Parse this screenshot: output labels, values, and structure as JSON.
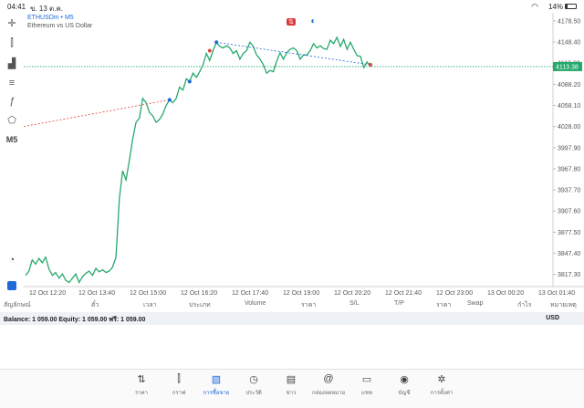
{
  "status": {
    "time": "04:41",
    "date": "ข. 13 ต.ค.",
    "battery": "14%"
  },
  "chart": {
    "symbol": "ETHUSDm • M5",
    "description": "Ethereum vs US Dollar",
    "current_price": "4113.38",
    "timeframe": "M5",
    "y_ticks": [
      "4178.50",
      "4148.40",
      "4118.30",
      "4088.20",
      "4058.10",
      "4028.00",
      "3997.90",
      "3967.80",
      "3937.70",
      "3907.60",
      "3877.50",
      "3847.40",
      "3817.30"
    ],
    "x_ticks": [
      "12 Oct 12:20",
      "12 Oct 13:40",
      "12 Oct 15:00",
      "12 Oct 16:20",
      "12 Oct 17:40",
      "12 Oct 19:00",
      "12 Oct 20:20",
      "12 Oct 21:40",
      "12 Oct 23:00",
      "13 Oct 00:20",
      "13 Oct 01:40"
    ]
  },
  "chart_data": {
    "type": "line",
    "ylim": [
      3800,
      4190
    ],
    "current_price": 4113.38,
    "y": [
      3816,
      3822,
      3838,
      3832,
      3840,
      3834,
      3842,
      3825,
      3816,
      3820,
      3812,
      3818,
      3809,
      3806,
      3812,
      3818,
      3806,
      3814,
      3819,
      3822,
      3816,
      3826,
      3821,
      3824,
      3820,
      3822,
      3828,
      3842,
      3925,
      3965,
      3952,
      3980,
      4010,
      4034,
      4040,
      4068,
      4062,
      4048,
      4043,
      4034,
      4038,
      4046,
      4058,
      4066,
      4062,
      4068,
      4084,
      4080,
      4096,
      4092,
      4104,
      4098,
      4106,
      4116,
      4132,
      4122,
      4136,
      4148,
      4142,
      4140,
      4143,
      4140,
      4132,
      4136,
      4124,
      4132,
      4136,
      4148,
      4142,
      4130,
      4124,
      4116,
      4104,
      4108,
      4106,
      4121,
      4133,
      4124,
      4133,
      4138,
      4140,
      4136,
      4124,
      4130,
      4130,
      4136,
      4146,
      4140,
      4143,
      4139,
      4138,
      4151,
      4146,
      4155,
      4142,
      4152,
      4138,
      4148,
      4138,
      4129,
      4128,
      4112,
      4120,
      4113
    ]
  },
  "table_headers": [
    "สัญลักษณ์",
    "ตั๋ว",
    "เวลา",
    "ประเภท",
    "Volume",
    "ราคา",
    "S/L",
    "T/P",
    "ราคา",
    "Swap",
    "กำไร",
    "หมายเหตุ"
  ],
  "balance": {
    "text": "Balance: 1 059.00 Equity: 1 059.00 ฟรี: 1 059.00",
    "currency": "USD"
  },
  "tabs": [
    {
      "icon": "quotes-icon",
      "label": "ราคา"
    },
    {
      "icon": "chart-icon",
      "label": "กราฟ"
    },
    {
      "icon": "trade-icon",
      "label": "การซื้อขาย"
    },
    {
      "icon": "history-icon",
      "label": "ประวัติ"
    },
    {
      "icon": "news-icon",
      "label": "ข่าว"
    },
    {
      "icon": "mailbox-icon",
      "label": "กล่องจดหมาย"
    },
    {
      "icon": "chat-icon",
      "label": "แชท"
    },
    {
      "icon": "account-icon",
      "label": "บัญชี"
    },
    {
      "icon": "settings-icon",
      "label": "การตั้งค่า"
    }
  ],
  "colors": {
    "line": "#26a96c",
    "accent": "#1e6ad8",
    "sell": "#e0463a",
    "buy": "#1e6ad8"
  }
}
